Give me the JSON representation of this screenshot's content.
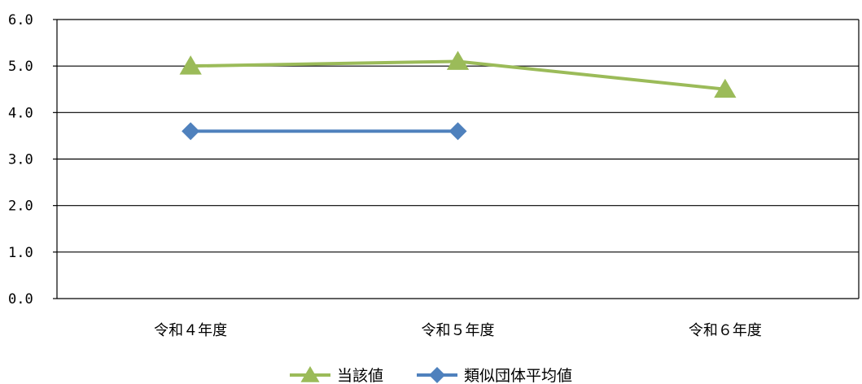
{
  "chart_data": {
    "type": "line",
    "categories": [
      "令和４年度",
      "令和５年度",
      "令和６年度"
    ],
    "ylim": [
      0,
      6
    ],
    "yticks": [
      0,
      1,
      2,
      3,
      4,
      5,
      6
    ],
    "ytick_labels": [
      "0.0",
      "1.0",
      "2.0",
      "3.0",
      "4.0",
      "5.0",
      "6.0"
    ],
    "grid": true,
    "legend_position": "bottom",
    "series": [
      {
        "name": "当該値",
        "values": [
          5.0,
          5.1,
          4.5
        ],
        "color": "#9BBB59",
        "marker": "triangle"
      },
      {
        "name": "類似団体平均値",
        "values": [
          3.6,
          3.6,
          null
        ],
        "color": "#4F81BD",
        "marker": "diamond"
      }
    ],
    "title": "",
    "xlabel": "",
    "ylabel": ""
  }
}
